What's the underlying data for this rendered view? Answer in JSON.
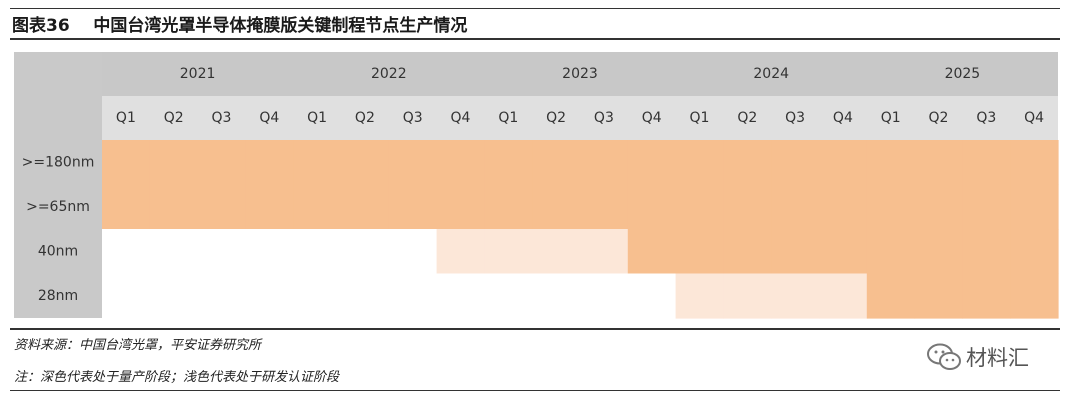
{
  "header": {
    "title": "图表36    中国台湾光罩半导体掩膜版关键制程节点生产情况"
  },
  "chart_data": {
    "type": "table",
    "years": [
      "2021",
      "2022",
      "2023",
      "2024",
      "2025"
    ],
    "quarters": [
      "Q1",
      "Q2",
      "Q3",
      "Q4"
    ],
    "rows": [
      {
        "label": ">=180nm",
        "cells": [
          "dark",
          "dark",
          "dark",
          "dark",
          "dark",
          "dark",
          "dark",
          "dark",
          "dark",
          "dark",
          "dark",
          "dark",
          "dark",
          "dark",
          "dark",
          "dark",
          "dark",
          "dark",
          "dark",
          "dark"
        ]
      },
      {
        "label": ">=65nm",
        "cells": [
          "dark",
          "dark",
          "dark",
          "dark",
          "dark",
          "dark",
          "dark",
          "dark",
          "dark",
          "dark",
          "dark",
          "dark",
          "dark",
          "dark",
          "dark",
          "dark",
          "dark",
          "dark",
          "dark",
          "dark"
        ]
      },
      {
        "label": "40nm",
        "cells": [
          "none",
          "none",
          "none",
          "none",
          "none",
          "none",
          "none",
          "light",
          "light",
          "light",
          "light",
          "dark",
          "dark",
          "dark",
          "dark",
          "dark",
          "dark",
          "dark",
          "dark",
          "dark"
        ]
      },
      {
        "label": "28nm",
        "cells": [
          "none",
          "none",
          "none",
          "none",
          "none",
          "none",
          "none",
          "none",
          "none",
          "none",
          "none",
          "none",
          "light",
          "light",
          "light",
          "light",
          "dark",
          "dark",
          "dark",
          "dark"
        ]
      }
    ],
    "colors": {
      "dark": "#f7bf8f",
      "light": "#fce7d8",
      "none": "#ffffff",
      "header_bg": "#c8c8c8",
      "subheader_bg": "#e0e0e0",
      "rowlabel_bg": "#c9c9c9"
    }
  },
  "footer": {
    "source": "资料来源：中国台湾光罩，平安证券研究所",
    "note": "注：深色代表处于量产阶段；浅色代表处于研发认证阶段"
  },
  "watermark": {
    "text": "材料汇",
    "icon": "wechat-icon"
  }
}
